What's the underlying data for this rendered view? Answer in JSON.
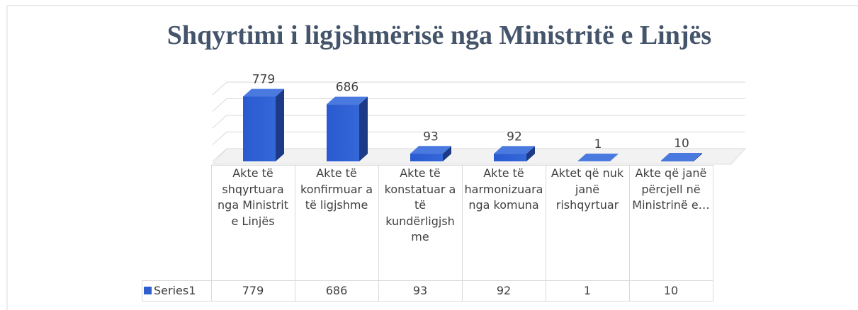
{
  "chart_data": {
    "type": "bar3d",
    "title": "Shqyrtimi i ligjshmërisë nga Ministritë e Linjës",
    "categories": [
      "Akte të shqyrtuara nga Ministrit e Linjës",
      "Akte të konfirmuar a të ligjshme",
      "Akte të konstatuar a të kundërligjshme",
      "Akte të harmonizuara nga komuna",
      "Aktet që nuk janë rishqyrtuar",
      "Akte që janë përcjell në Ministrinë e…"
    ],
    "series": [
      {
        "name": "Series1",
        "color": "#2e5fcc",
        "values": [
          779,
          686,
          93,
          92,
          1,
          10
        ]
      }
    ],
    "ylim": [
      0,
      800
    ],
    "yticks": [
      0,
      200,
      400,
      600,
      800
    ],
    "grid": true,
    "data_table": true
  }
}
